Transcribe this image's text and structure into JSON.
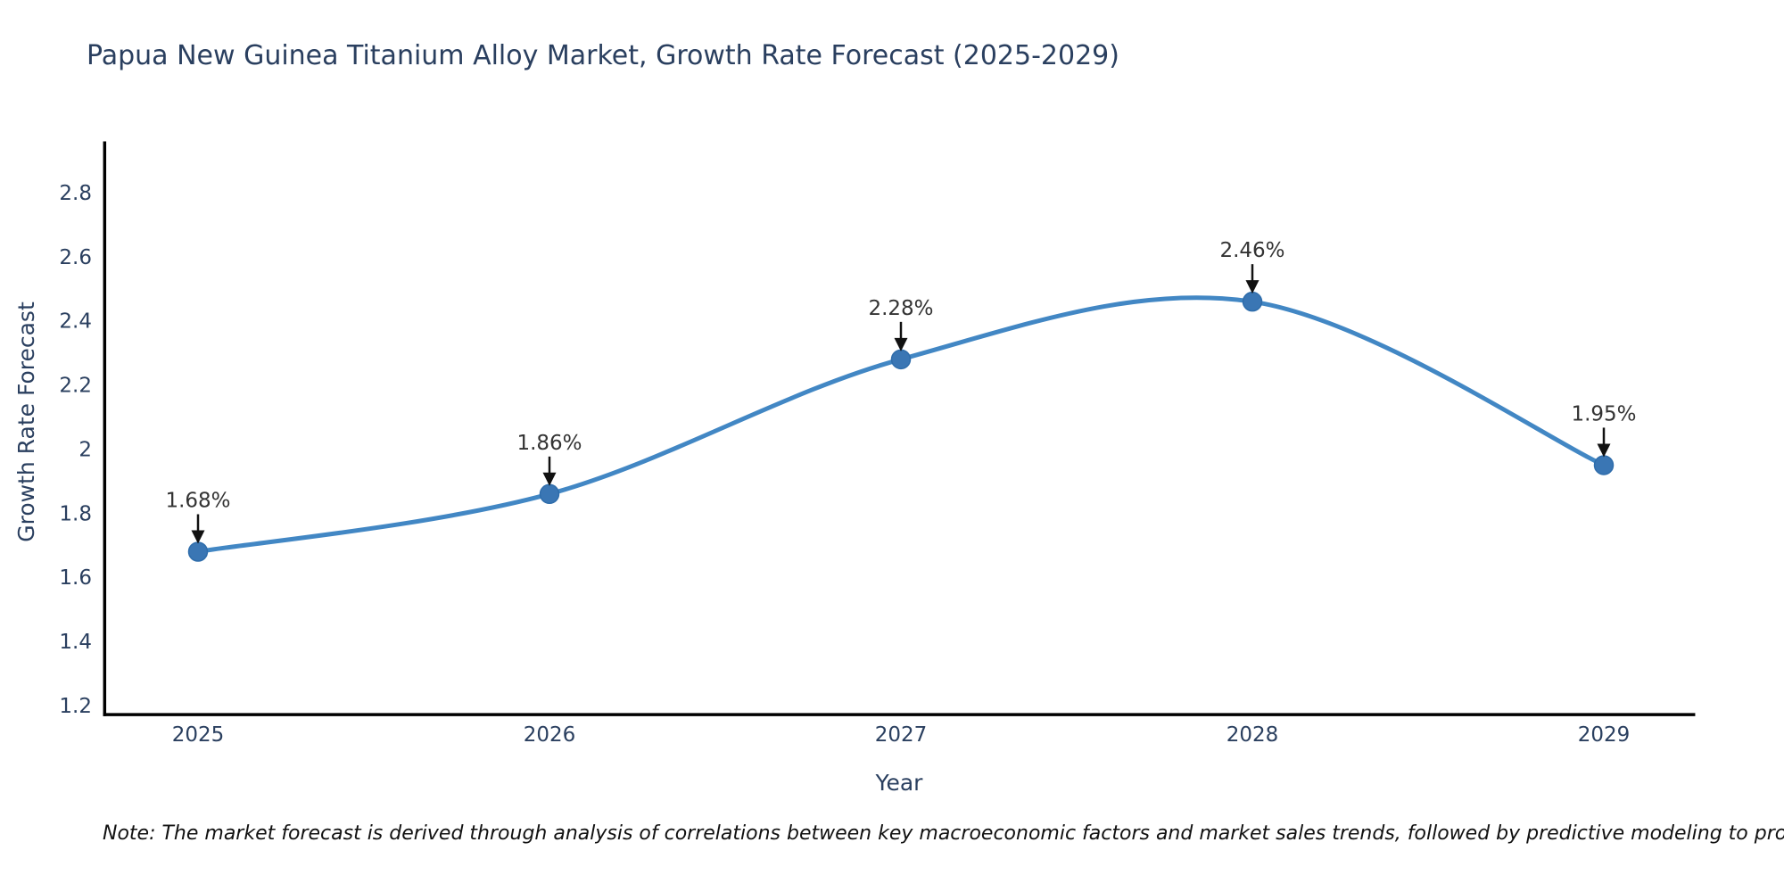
{
  "chart_data": {
    "type": "line",
    "title": "Papua New Guinea Titanium Alloy Market, Growth Rate Forecast (2025-2029)",
    "xlabel": "Year",
    "ylabel": "Growth Rate Forecast",
    "x": [
      2025,
      2026,
      2027,
      2028,
      2029
    ],
    "values": [
      1.68,
      1.86,
      2.28,
      2.46,
      1.95
    ],
    "point_labels": [
      "1.68%",
      "1.86%",
      "2.28%",
      "2.46%",
      "1.95%"
    ],
    "yticks": [
      1.2,
      1.4,
      1.6,
      1.8,
      2,
      2.2,
      2.4,
      2.6,
      2.8
    ],
    "xticks": [
      "2025",
      "2026",
      "2027",
      "2028",
      "2029"
    ],
    "xlim": [
      2024.73,
      2029.26
    ],
    "ylim": [
      1.167,
      2.96
    ],
    "line_shape": "spline",
    "grid": false,
    "legend": false,
    "line_color": "#4287c4",
    "marker_color": "#3a76b4",
    "marker_edge_color": "#2f6dab",
    "axis_line_color": "#000000",
    "text_color": "#2a3f5f",
    "annotation_text_color": "#333333",
    "annotation_arrow_color": "#111111"
  },
  "footnote": {
    "text": "Note: The market forecast is derived through analysis of correlations between key macroeconomic factors and market sales trends, followed by predictive modeling to project future sales"
  }
}
